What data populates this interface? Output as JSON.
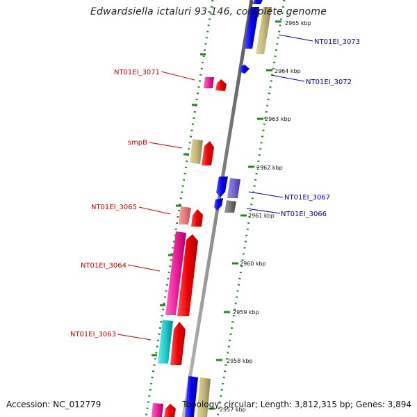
{
  "title": "Edwardsiella ictaluri 93-146, complete genome",
  "accession": "Accession: NC_012779",
  "summary": "Topology: circular; Length: 3,812,315 bp; Genes: 3,894",
  "colors": {
    "red_label": "#cc0000",
    "blue_label": "#000099",
    "tick_green": "#228822",
    "backbone": "#888888"
  },
  "scale_ticks": [
    "2965 kbp",
    "2964 kbp",
    "2963 kbp",
    "2962 kbp",
    "2961 kbp",
    "2960 kbp",
    "2959 kbp",
    "2958 kbp",
    "2957 kbp"
  ],
  "gene_labels_reverse": [
    "NT01EI_3071",
    "smpB",
    "NT01EI_3065",
    "NT01EI_3064",
    "NT01EI_3063"
  ],
  "gene_labels_forward": [
    "NT01EI_3073",
    "NT01EI_3072",
    "NT01EI_3067",
    "NT01EI_3066"
  ]
}
